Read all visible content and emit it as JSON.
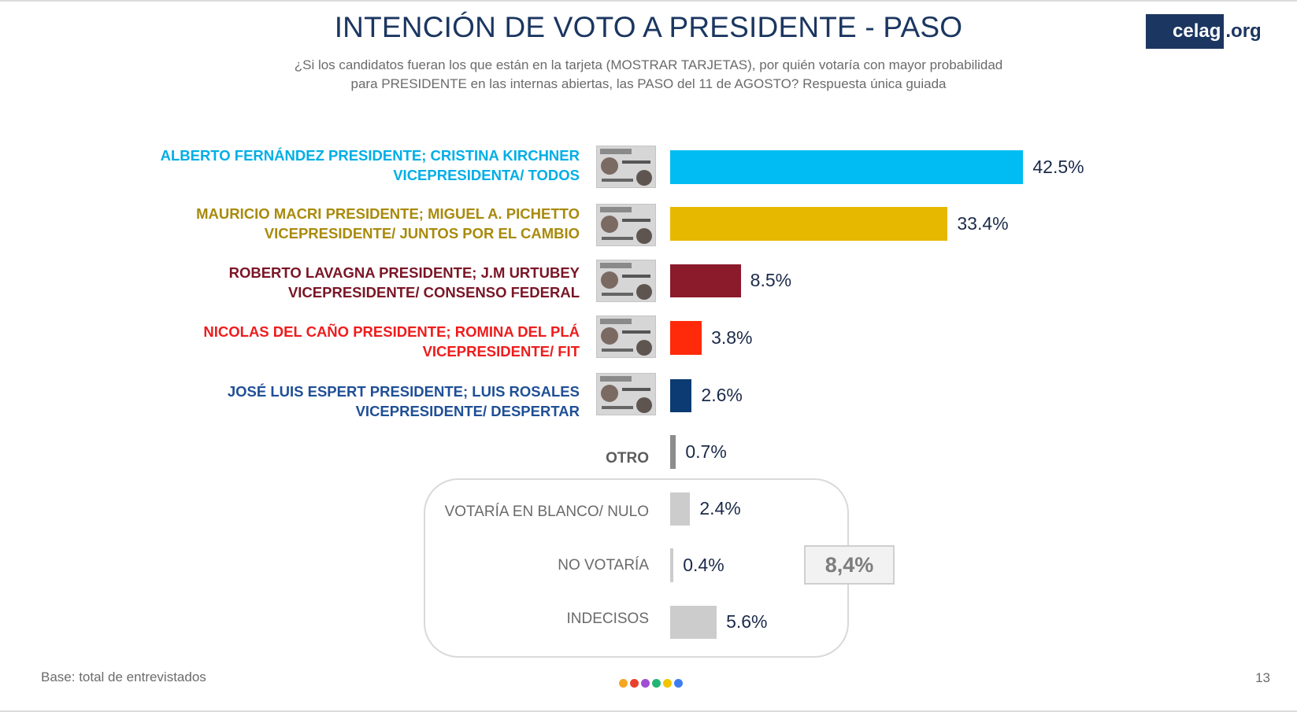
{
  "header": {
    "title": "INTENCIÓN DE VOTO A PRESIDENTE - PASO",
    "subtitle_line1": "¿Si los candidatos fueran los que están en la tarjeta (MOSTRAR TARJETAS), por quién votaría con mayor probabilidad",
    "subtitle_line2": "para PRESIDENTE en las internas abiertas, las PASO del 11 de AGOSTO?  Respuesta única guiada",
    "logo_main": "celag",
    "logo_tld": ".org"
  },
  "group_total": "8,4%",
  "footer": {
    "base_note": "Base: total de entrevistados",
    "page_number": "13",
    "dot_colors": [
      "#f5a623",
      "#e8422e",
      "#a04fd4",
      "#22b573",
      "#f2c500",
      "#3d7ff0"
    ]
  },
  "chart_data": {
    "type": "bar",
    "orientation": "horizontal",
    "title": "INTENCIÓN DE VOTO A PRESIDENTE - PASO",
    "categories": [
      {
        "line1": "ALBERTO FERNÁNDEZ PRESIDENTE; CRISTINA KIRCHNER",
        "line2": "VICEPRESIDENTA/ TODOS"
      },
      {
        "line1": "MAURICIO MACRI PRESIDENTE; MIGUEL A. PICHETTO",
        "line2": "VICEPRESIDENTE/ JUNTOS POR EL CAMBIO"
      },
      {
        "line1": "ROBERTO LAVAGNA PRESIDENTE; J.M URTUBEY",
        "line2": "VICEPRESIDENTE/ CONSENSO FEDERAL"
      },
      {
        "line1": "NICOLAS DEL CAÑO PRESIDENTE; ROMINA DEL PLÁ",
        "line2": "VICEPRESIDENTE/ FIT"
      },
      {
        "line1": "JOSÉ LUIS ESPERT PRESIDENTE; LUIS ROSALES",
        "line2": "VICEPRESIDENTE/ DESPERTAR"
      },
      {
        "line1": "OTRO",
        "line2": ""
      },
      {
        "line1": "VOTARÍA EN BLANCO/ NULO",
        "line2": ""
      },
      {
        "line1": "NO VOTARÍA",
        "line2": ""
      },
      {
        "line1": "INDECISOS",
        "line2": ""
      }
    ],
    "values": [
      42.5,
      33.4,
      8.5,
      3.8,
      2.6,
      0.7,
      2.4,
      0.4,
      5.6
    ],
    "value_labels": [
      "42.5%",
      "33.4%",
      "8.5%",
      "3.8%",
      "2.6%",
      "0.7%",
      "2.4%",
      "0.4%",
      "5.6%"
    ],
    "colors": [
      "#00bcf2",
      "#e6b800",
      "#8b1a2b",
      "#ff2a0a",
      "#0c3b73",
      "#8c8c8c",
      "#cccccc",
      "#cccccc",
      "#cccccc"
    ],
    "label_colors": [
      "#00aee6",
      "#a88a0c",
      "#7a1526",
      "#ee1c1c",
      "#1f4f96",
      "#5c5c5c",
      "#6a6a6a",
      "#6a6a6a",
      "#6a6a6a"
    ],
    "xlim": [
      0,
      45
    ],
    "grid": false
  }
}
